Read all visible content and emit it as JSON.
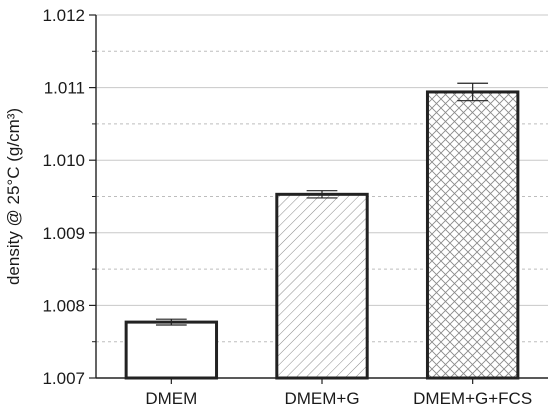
{
  "chart_data": {
    "type": "bar",
    "title": "",
    "xlabel": "",
    "ylabel": "density @ 25°C (g/cm³)",
    "ylim": [
      1.007,
      1.012
    ],
    "yticks": [
      1.007,
      1.008,
      1.009,
      1.01,
      1.011,
      1.012
    ],
    "ytick_labels": [
      "1.007",
      "1.008",
      "1.009",
      "1.010",
      "1.011",
      "1.012"
    ],
    "grid": true,
    "grid_minor": true,
    "categories": [
      "DMEM",
      "DMEM+G",
      "DMEM+G+FCS"
    ],
    "values": [
      1.00777,
      1.00953,
      1.01094
    ],
    "errors": [
      4e-05,
      5e-05,
      0.00012
    ],
    "fill_patterns": [
      "none",
      "diagonal",
      "crosshatch"
    ],
    "colors": {
      "bar_edge": "#222222",
      "grid": "#c8c8c8",
      "axis": "#222222",
      "pattern": "#8a8a8a"
    }
  }
}
